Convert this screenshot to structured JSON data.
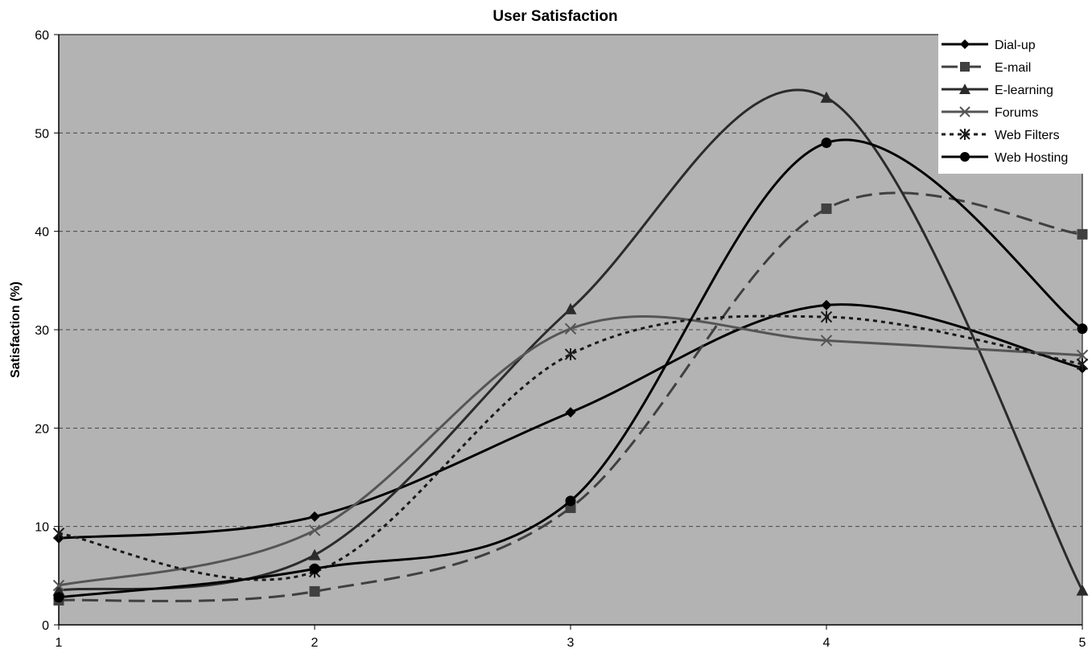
{
  "chart_data": {
    "type": "line",
    "title": "User Satisfaction",
    "xlabel": "",
    "ylabel": "Satisfaction (%)",
    "x": [
      1,
      2,
      3,
      4,
      5
    ],
    "ylim": [
      0,
      60
    ],
    "yticks": [
      0,
      10,
      20,
      30,
      40,
      50,
      60
    ],
    "xticks": [
      "1",
      "2",
      "3",
      "4",
      "5"
    ],
    "grid": "horizontal dashed",
    "plot_background": "#b3b3b3",
    "legend_position": "top-right",
    "smoothed": true,
    "series": [
      {
        "name": "Dial-up",
        "values": [
          8.8,
          11.0,
          21.6,
          32.5,
          26.1
        ],
        "marker": "diamond",
        "color": "#000000",
        "dash": "solid"
      },
      {
        "name": "E-mail",
        "values": [
          2.5,
          3.4,
          11.9,
          42.3,
          39.7
        ],
        "marker": "square",
        "color": "#404040",
        "dash": "long-dash"
      },
      {
        "name": "E-learning",
        "values": [
          3.5,
          7.1,
          32.1,
          53.6,
          3.5
        ],
        "marker": "triangle",
        "color": "#2b2b2b",
        "dash": "solid"
      },
      {
        "name": "Forums",
        "values": [
          4.0,
          9.6,
          30.1,
          28.9,
          27.4
        ],
        "marker": "x",
        "color": "#555555",
        "dash": "solid"
      },
      {
        "name": "Web Filters",
        "values": [
          9.3,
          5.4,
          27.5,
          31.3,
          26.5
        ],
        "marker": "asterisk",
        "color": "#1a1a1a",
        "dash": "dotted"
      },
      {
        "name": "Web Hosting",
        "values": [
          2.8,
          5.7,
          12.6,
          49.0,
          30.1
        ],
        "marker": "circle",
        "color": "#000000",
        "dash": "solid"
      }
    ]
  }
}
